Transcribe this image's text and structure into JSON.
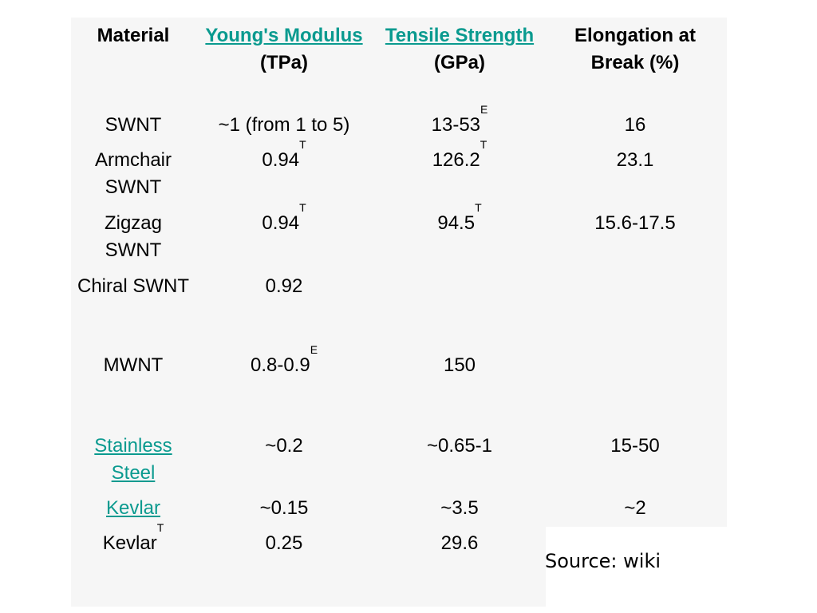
{
  "header": {
    "material": "Material",
    "youngs_link": "Young's Modulus",
    "youngs_unit": "(TPa)",
    "tensile_link": "Tensile Strength",
    "tensile_unit": "(GPa)",
    "elongation": "Elongation at Break (%)"
  },
  "rows": [
    {
      "material": "SWNT",
      "youngs": "~1 (from 1 to 5)",
      "tensile": "13-53",
      "tensile_sup": "E",
      "elongation": "16"
    },
    {
      "material": "Armchair SWNT",
      "youngs": "0.94",
      "youngs_sup": "T",
      "tensile": "126.2",
      "tensile_sup": "T",
      "elongation": "23.1"
    },
    {
      "material": "Zigzag SWNT",
      "youngs": "0.94",
      "youngs_sup": "T",
      "tensile": "94.5",
      "tensile_sup": "T",
      "elongation": "15.6-17.5"
    },
    {
      "material": "Chiral SWNT",
      "youngs": "0.92",
      "tensile": "",
      "elongation": ""
    },
    {
      "material": "MWNT",
      "youngs": "0.8-0.9",
      "youngs_sup": "E",
      "tensile": "150",
      "elongation": ""
    },
    {
      "material": "Stainless Steel",
      "youngs": "~0.2",
      "tensile": "~0.65-1",
      "elongation": "15-50"
    },
    {
      "material": "Kevlar",
      "youngs": "~0.15",
      "tensile": "~3.5",
      "elongation": "~2"
    },
    {
      "material": "Kevlar",
      "material_sup": "T",
      "youngs": "0.25",
      "tensile": "29.6",
      "elongation": ""
    }
  ],
  "source": "Source: wiki",
  "colors": {
    "link": "#0a9a8f",
    "panel": "#f6f6f6"
  }
}
